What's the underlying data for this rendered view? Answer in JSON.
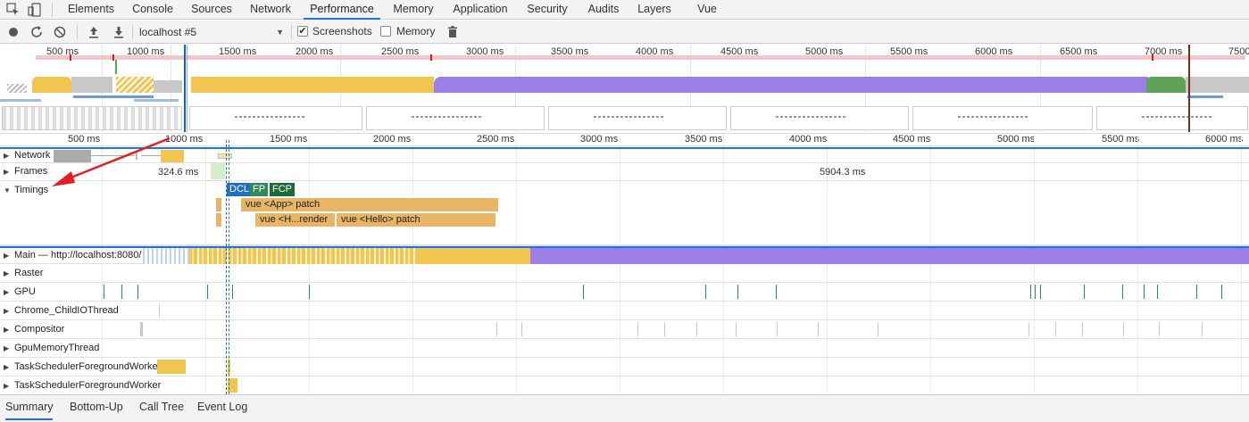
{
  "tabs": [
    {
      "label": "Elements"
    },
    {
      "label": "Console"
    },
    {
      "label": "Sources"
    },
    {
      "label": "Network"
    },
    {
      "label": "Performance"
    },
    {
      "label": "Memory"
    },
    {
      "label": "Application"
    },
    {
      "label": "Security"
    },
    {
      "label": "Audits"
    },
    {
      "label": "Layers"
    },
    {
      "label": "Vue"
    }
  ],
  "active_tab": "Performance",
  "toolbar": {
    "target_select": "localhost #5",
    "screenshots_label": "Screenshots",
    "screenshots_checked": true,
    "memory_label": "Memory",
    "memory_checked": false
  },
  "overview": {
    "ticks": [
      "500 ms",
      "1000 ms",
      "1500 ms",
      "2000 ms",
      "2500 ms",
      "3000 ms",
      "3500 ms",
      "4000 ms",
      "4500 ms",
      "5000 ms",
      "5500 ms",
      "6000 ms",
      "6500 ms",
      "7000 ms",
      "7500"
    ]
  },
  "timeline": {
    "ticks": [
      "500 ms",
      "1000 ms",
      "1500 ms",
      "2000 ms",
      "2500 ms",
      "3000 ms",
      "3500 ms",
      "4000 ms",
      "4500 ms",
      "5000 ms",
      "5500 ms",
      "6000 ms"
    ],
    "tracks": {
      "network": "Network",
      "frames": "Frames",
      "timings": "Timings",
      "main": "Main — http://localhost:8080/",
      "raster": "Raster",
      "gpu": "GPU",
      "child_io": "Chrome_ChildIOThread",
      "compositor": "Compositor",
      "gpu_memory": "GpuMemoryThread",
      "worker1": "TaskSchedulerForegroundWorker",
      "worker2": "TaskSchedulerForegroundWorker"
    },
    "frames": {
      "first": "324.6 ms",
      "second": "5904.3 ms"
    },
    "markers": {
      "dcl": "DCL",
      "fp": "FP",
      "fcp": "FCP"
    },
    "timings": {
      "app_patch": "vue <App> patch",
      "h_render": "vue <H...render",
      "hello_patch": "vue <Hello> patch"
    }
  },
  "bottom_tabs": [
    "Summary",
    "Bottom-Up",
    "Call Tree",
    "Event Log"
  ],
  "colors": {
    "accent": "#1a73e8",
    "scripting": "#f0c550",
    "idle_purple": "#9b7fe6",
    "painting": "#5fa35a",
    "timing_bar": "#e8b466",
    "dcl": "#1f6ec4",
    "fp": "#2e8b57",
    "fcp": "#1b6b35"
  }
}
